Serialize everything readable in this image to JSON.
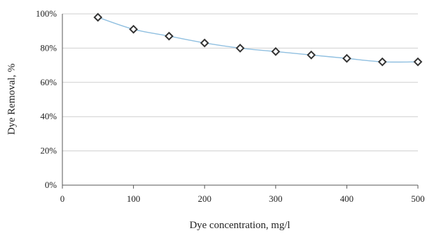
{
  "chart_data": {
    "type": "scatter",
    "title": "",
    "xlabel": "Dye concentration, mg/l",
    "ylabel": "Dye Removal, %",
    "xlim": [
      0,
      500
    ],
    "ylim": [
      0,
      100
    ],
    "x_ticks": [
      0,
      100,
      200,
      300,
      400,
      500
    ],
    "x_tick_labels": [
      "0",
      "100",
      "200",
      "300",
      "400",
      "500"
    ],
    "y_ticks": [
      0,
      20,
      40,
      60,
      80,
      100
    ],
    "y_tick_labels": [
      "0%",
      "20%",
      "40%",
      "60%",
      "80%",
      "100%"
    ],
    "grid": "horizontal",
    "legend": "none",
    "marker": "diamond",
    "trendline": true,
    "series": [
      {
        "x": [
          50,
          100,
          150,
          200,
          250,
          300,
          350,
          400,
          450,
          500
        ],
        "y": [
          98,
          91,
          87,
          83,
          80,
          78,
          76,
          74,
          72,
          72
        ]
      }
    ],
    "colors": {
      "trendline": "#8fbfe0",
      "marker_stroke": "#333333",
      "grid": "#cfcfcf"
    }
  }
}
